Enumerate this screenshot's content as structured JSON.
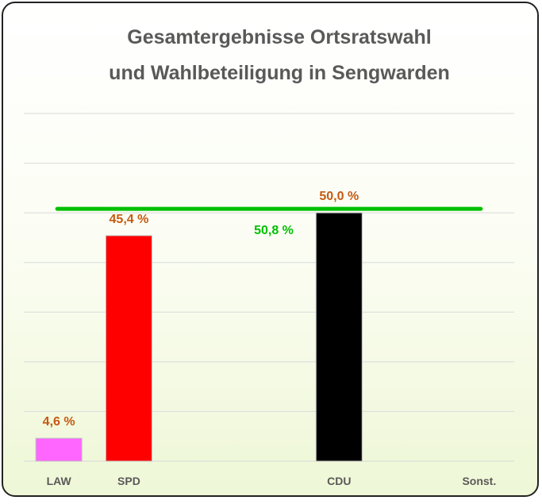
{
  "chart_data": {
    "type": "bar",
    "title": [
      "Gesamtergebnisse Ortsratswahl",
      "und Wahlbeteiligung in Sengwarden"
    ],
    "categories": [
      "LAW",
      "SPD",
      null,
      null,
      "CDU",
      null,
      "Sonst."
    ],
    "values": [
      4.6,
      45.4,
      null,
      null,
      50.0,
      null,
      null
    ],
    "value_labels": [
      "4,6 %",
      "45,4 %",
      null,
      null,
      "50,0 %",
      null,
      null
    ],
    "colors": [
      "#ff66ff",
      "#ff0000",
      null,
      null,
      "#000000",
      null,
      null
    ],
    "ylim": [
      0,
      70
    ],
    "yticks": [
      0,
      10,
      20,
      30,
      40,
      50,
      60,
      70
    ],
    "grid": true,
    "reference_line": {
      "value": 50.8,
      "label": "50,8 %",
      "color": "#00c000"
    }
  }
}
